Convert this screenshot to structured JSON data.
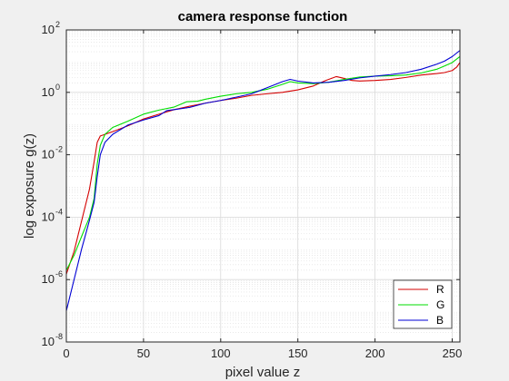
{
  "chart_data": {
    "type": "line",
    "title": "camera response function",
    "xlabel": "pixel value z",
    "ylabel": "log exposure g(z)",
    "xlim": [
      0,
      255
    ],
    "ylim": [
      1e-08,
      100
    ],
    "yscale": "log",
    "grid": true,
    "minor_grid": true,
    "legend_position": "bottom-right",
    "x_ticks": [
      0,
      50,
      100,
      150,
      200,
      250
    ],
    "y_ticks": [
      {
        "value": 1e-08,
        "base": "10",
        "exp": "-8"
      },
      {
        "value": 1e-06,
        "base": "10",
        "exp": "-6"
      },
      {
        "value": 0.0001,
        "base": "10",
        "exp": "-4"
      },
      {
        "value": 0.01,
        "base": "10",
        "exp": "-2"
      },
      {
        "value": 1,
        "base": "10",
        "exp": "0"
      },
      {
        "value": 100,
        "base": "10",
        "exp": "2"
      }
    ],
    "series": [
      {
        "name": "R",
        "color": "#d40000",
        "points": [
          [
            0,
            1.5e-06
          ],
          [
            5,
            8e-06
          ],
          [
            10,
            8e-05
          ],
          [
            15,
            0.0008
          ],
          [
            18,
            0.006
          ],
          [
            20,
            0.025
          ],
          [
            22,
            0.04
          ],
          [
            25,
            0.045
          ],
          [
            30,
            0.055
          ],
          [
            40,
            0.085
          ],
          [
            50,
            0.14
          ],
          [
            60,
            0.2
          ],
          [
            70,
            0.28
          ],
          [
            80,
            0.36
          ],
          [
            90,
            0.45
          ],
          [
            100,
            0.55
          ],
          [
            110,
            0.65
          ],
          [
            120,
            0.8
          ],
          [
            130,
            0.9
          ],
          [
            140,
            1.0
          ],
          [
            150,
            1.2
          ],
          [
            160,
            1.6
          ],
          [
            168,
            2.4
          ],
          [
            175,
            3.2
          ],
          [
            180,
            2.8
          ],
          [
            185,
            2.4
          ],
          [
            190,
            2.3
          ],
          [
            200,
            2.4
          ],
          [
            210,
            2.6
          ],
          [
            220,
            3.0
          ],
          [
            230,
            3.6
          ],
          [
            240,
            4.0
          ],
          [
            245,
            4.3
          ],
          [
            250,
            5.0
          ],
          [
            253,
            6.5
          ],
          [
            255,
            9.0
          ]
        ]
      },
      {
        "name": "G",
        "color": "#00dd00",
        "points": [
          [
            0,
            2e-06
          ],
          [
            5,
            6e-06
          ],
          [
            10,
            2.5e-05
          ],
          [
            15,
            0.0001
          ],
          [
            18,
            0.0004
          ],
          [
            20,
            0.005
          ],
          [
            22,
            0.02
          ],
          [
            25,
            0.045
          ],
          [
            30,
            0.075
          ],
          [
            40,
            0.12
          ],
          [
            50,
            0.2
          ],
          [
            60,
            0.27
          ],
          [
            70,
            0.34
          ],
          [
            78,
            0.5
          ],
          [
            85,
            0.52
          ],
          [
            90,
            0.6
          ],
          [
            100,
            0.75
          ],
          [
            110,
            0.9
          ],
          [
            120,
            1.0
          ],
          [
            130,
            1.25
          ],
          [
            140,
            1.8
          ],
          [
            145,
            2.2
          ],
          [
            150,
            2.0
          ],
          [
            160,
            1.9
          ],
          [
            170,
            2.1
          ],
          [
            180,
            2.6
          ],
          [
            190,
            3.1
          ],
          [
            200,
            3.3
          ],
          [
            210,
            3.4
          ],
          [
            220,
            3.6
          ],
          [
            230,
            4.2
          ],
          [
            240,
            5.5
          ],
          [
            245,
            7.0
          ],
          [
            250,
            9.0
          ],
          [
            255,
            14.0
          ]
        ]
      },
      {
        "name": "B",
        "color": "#0000d4",
        "points": [
          [
            0,
            1e-07
          ],
          [
            5,
            1e-06
          ],
          [
            10,
            1e-05
          ],
          [
            15,
            8e-05
          ],
          [
            18,
            0.0003
          ],
          [
            20,
            0.002
          ],
          [
            22,
            0.01
          ],
          [
            25,
            0.025
          ],
          [
            30,
            0.045
          ],
          [
            40,
            0.09
          ],
          [
            50,
            0.13
          ],
          [
            60,
            0.18
          ],
          [
            65,
            0.26
          ],
          [
            70,
            0.28
          ],
          [
            80,
            0.33
          ],
          [
            90,
            0.45
          ],
          [
            100,
            0.55
          ],
          [
            110,
            0.7
          ],
          [
            120,
            0.9
          ],
          [
            130,
            1.4
          ],
          [
            140,
            2.2
          ],
          [
            145,
            2.6
          ],
          [
            150,
            2.3
          ],
          [
            160,
            2.0
          ],
          [
            170,
            2.1
          ],
          [
            180,
            2.4
          ],
          [
            190,
            2.9
          ],
          [
            200,
            3.3
          ],
          [
            210,
            3.7
          ],
          [
            220,
            4.3
          ],
          [
            230,
            5.5
          ],
          [
            240,
            8.0
          ],
          [
            245,
            10.0
          ],
          [
            250,
            14.0
          ],
          [
            255,
            22.0
          ]
        ]
      }
    ]
  }
}
